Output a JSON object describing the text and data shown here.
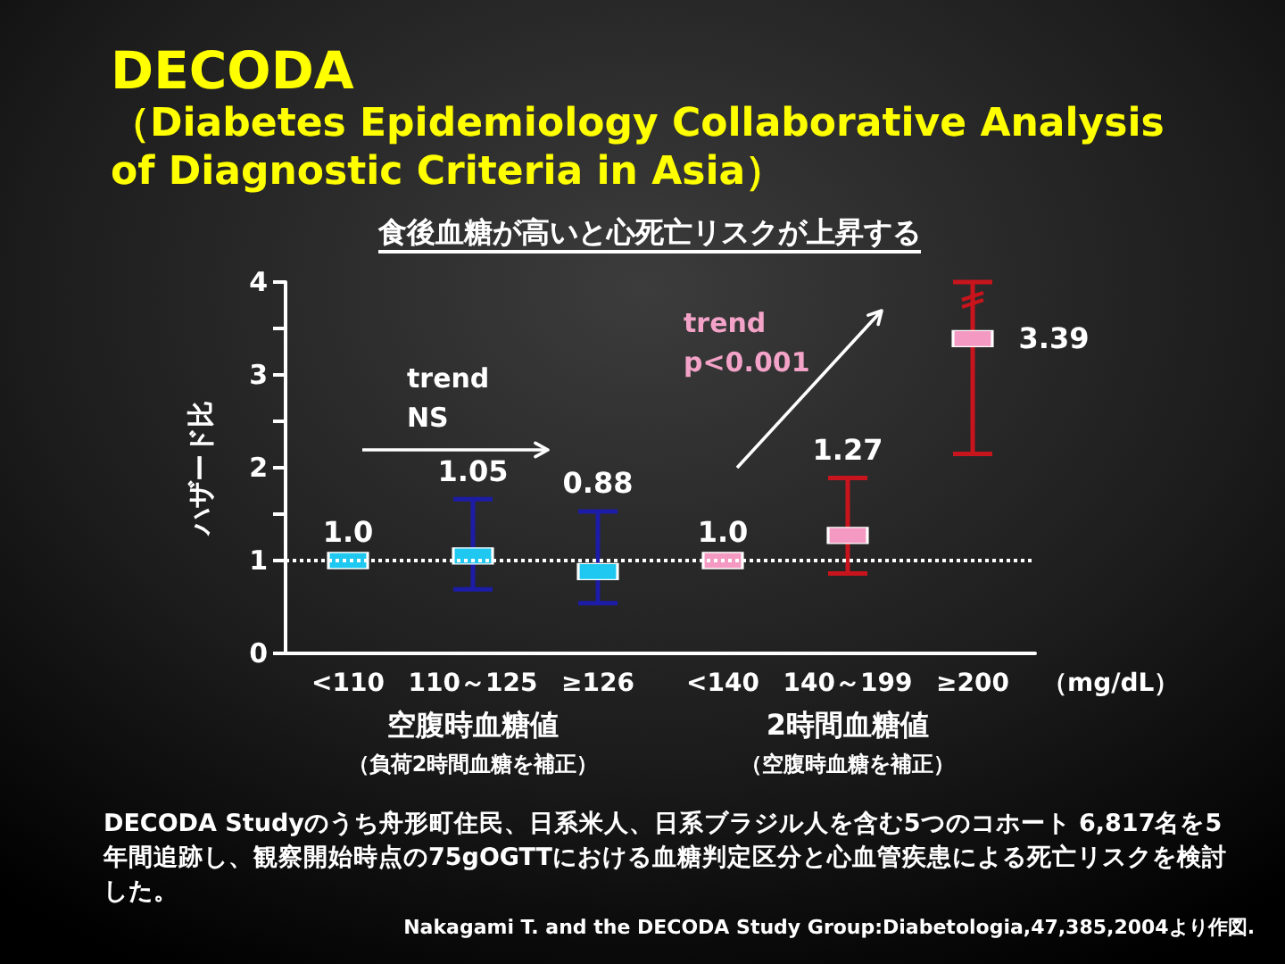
{
  "chart_data": {
    "type": "scatter",
    "title": "DECODA",
    "subtitle": "（Diabetes Epidemiology Collaborative Analysis of Diagnostic Criteria in Asia）",
    "xlabel": "（mg/dL）",
    "ylabel": "ハザード比",
    "categories": [
      "<110",
      "110～125",
      "≥126",
      "<140",
      "140～199",
      "≥200"
    ],
    "series": [
      {
        "color": "#1ec8f0",
        "values": [
          1,
          1.05,
          0.88,
          null,
          null,
          null
        ],
        "errors": [
          null,
          [
            0.69,
            1.66
          ],
          [
            0.54,
            1.53
          ],
          null,
          null,
          null
        ],
        "value_labels": [
          "1.0",
          "1.05",
          "0.88",
          null,
          null,
          null
        ]
      },
      {
        "color": "#f49ac2",
        "values": [
          null,
          null,
          null,
          1,
          1.27,
          3.39
        ],
        "errors": [
          null,
          null,
          null,
          null,
          [
            0.86,
            1.89
          ],
          [
            2.15,
            4
          ]
        ],
        "value_labels": [
          null,
          null,
          null,
          "1.0",
          "1.27",
          "3.39"
        ]
      }
    ],
    "marker": "square",
    "ylim": [
      0,
      4
    ],
    "yticks": [
      0,
      1,
      {
        "value": 1.5,
        "label": null
      },
      2,
      {
        "value": 2.5,
        "label": null
      },
      3,
      {
        "value": 3.5,
        "label": null
      },
      4
    ],
    "grid": false,
    "ref_lines": [
      {
        "axis": "y",
        "value": 1,
        "color": "#ffffff",
        "line_style": "dotted"
      }
    ],
    "annotations": [
      "食後血糖が高いと心死亡リスクが上昇する",
      "trend NS",
      "trend p<0.001",
      "空腹時血糖値",
      "（負荷2時間血糖を補正）",
      "2時間血糖値",
      "（空腹時血糖を補正）",
      "DECODA Studyのうち舟形町住民、日系米人、日系ブラジル人を含む5つのコホート 6,817名を5年間追跡し、観察開始時点の75gOGTTにおける血糖判定区分と心血管疾患による死亡リスクを検討した。",
      "Nakagami T. and the DECODA Study Group:Diabetologia,47,385,2004より作図."
    ]
  }
}
